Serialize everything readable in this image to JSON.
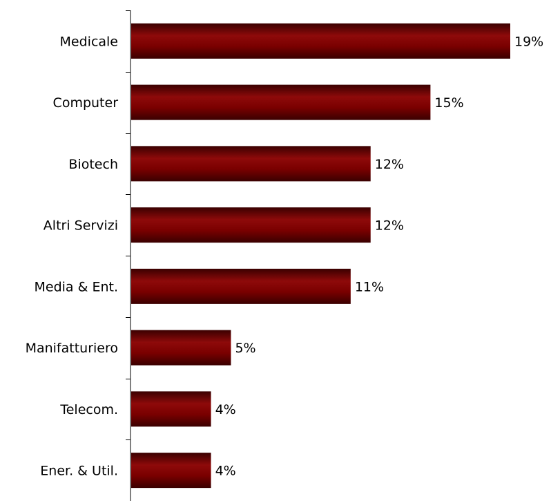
{
  "chart_data": {
    "type": "bar",
    "orientation": "horizontal",
    "categories": [
      "Medicale",
      "Computer",
      "Biotech",
      "Altri Servizi",
      "Media & Ent.",
      "Manifatturiero",
      "Telecom.",
      "Ener. & Util."
    ],
    "values": [
      19,
      15,
      12,
      12,
      11,
      5,
      4,
      4
    ],
    "value_labels": [
      "19%",
      "15%",
      "12%",
      "12%",
      "11%",
      "5%",
      "4%",
      "4%"
    ],
    "unit": "%",
    "xlim": [
      0,
      19
    ],
    "grid": false,
    "legend": "none",
    "bar_color": "#7a0000",
    "bar_highlight": "#8e0a0a",
    "bar_shadow": "#3a0000"
  }
}
